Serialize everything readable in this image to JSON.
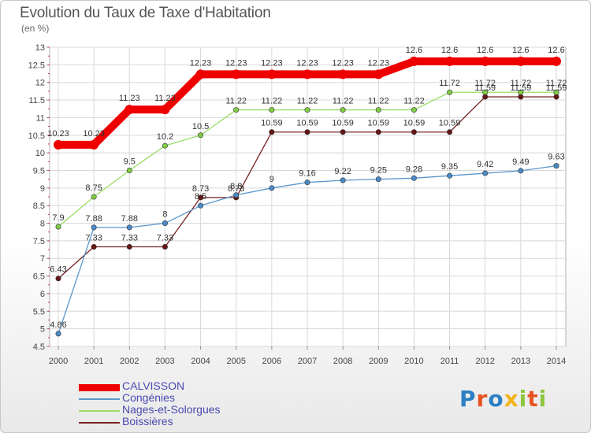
{
  "header": {
    "title": "Evolution du Taux de Taxe d'Habitation",
    "subtitle": "(en %)"
  },
  "logo": {
    "text": "Proxiti",
    "colors": [
      "#2c7fc4",
      "#e8521f",
      "#2c7fc4",
      "#f2b31c",
      "#8cc63e",
      "#e8521f",
      "#8cc63e"
    ]
  },
  "chart_data": {
    "type": "line",
    "x": [
      "2000",
      "2001",
      "2002",
      "2003",
      "2004",
      "2005",
      "2006",
      "2007",
      "2008",
      "2009",
      "2010",
      "2011",
      "2012",
      "2013",
      "2014"
    ],
    "ylim": [
      4.5,
      13
    ],
    "yticks": [
      "4.5",
      "5",
      "5.5",
      "6",
      "6.5",
      "7",
      "7.5",
      "8",
      "8.5",
      "9",
      "9.5",
      "10",
      "10.5",
      "11",
      "11.5",
      "12",
      "12.5",
      "13"
    ],
    "grid": true,
    "legend_position": "bottom-left",
    "series": [
      {
        "name": "CALVISSON",
        "color": "#ee0000",
        "values": [
          10.23,
          10.23,
          11.23,
          11.23,
          12.23,
          12.23,
          12.23,
          12.23,
          12.23,
          12.23,
          12.6,
          12.6,
          12.6,
          12.6,
          12.6
        ],
        "labels": [
          "10.23",
          "10.23",
          "11.23",
          "11.23",
          "12.23",
          "12.23",
          "12.23",
          "12.23",
          "12.23",
          "12.23",
          "12.6",
          "12.6",
          "12.6",
          "12.6",
          "12.6"
        ]
      },
      {
        "name": "Congénies",
        "color": "#5a96cc",
        "values": [
          4.86,
          7.88,
          7.88,
          8,
          8.5,
          8.8,
          9,
          9.16,
          9.22,
          9.25,
          9.28,
          9.35,
          9.42,
          9.49,
          9.63
        ],
        "labels": [
          "4.86",
          "7.88",
          "7.88",
          "8",
          "8.5",
          "8.8",
          "9",
          "9.16",
          "9.22",
          "9.25",
          "9.28",
          "9.35",
          "9.42",
          "9.49",
          "9.63"
        ]
      },
      {
        "name": "Nages-et-Solorgues",
        "color": "#99dd66",
        "values": [
          7.9,
          8.75,
          9.5,
          10.2,
          10.5,
          11.22,
          11.22,
          11.22,
          11.22,
          11.22,
          11.22,
          11.72,
          11.72,
          11.72,
          11.72
        ],
        "labels": [
          "7.9",
          "8.75",
          "9.5",
          "10.2",
          "10.5",
          "11.22",
          "11.22",
          "11.22",
          "11.22",
          "11.22",
          "11.22",
          "11.72",
          "11.72",
          "11.72",
          "11.72"
        ]
      },
      {
        "name": "Boissières",
        "color": "#772222",
        "values": [
          6.43,
          7.33,
          7.33,
          7.33,
          8.73,
          8.73,
          10.59,
          10.59,
          10.59,
          10.59,
          10.59,
          10.59,
          11.59,
          11.59,
          11.59
        ],
        "labels": [
          "6.43",
          "7.33",
          "7.33",
          "7.33",
          "8.73",
          "8.73",
          "10.59",
          "10.59",
          "10.59",
          "10.59",
          "10.59",
          "10.59",
          "11.59",
          "11.59",
          "11.59"
        ]
      }
    ]
  }
}
